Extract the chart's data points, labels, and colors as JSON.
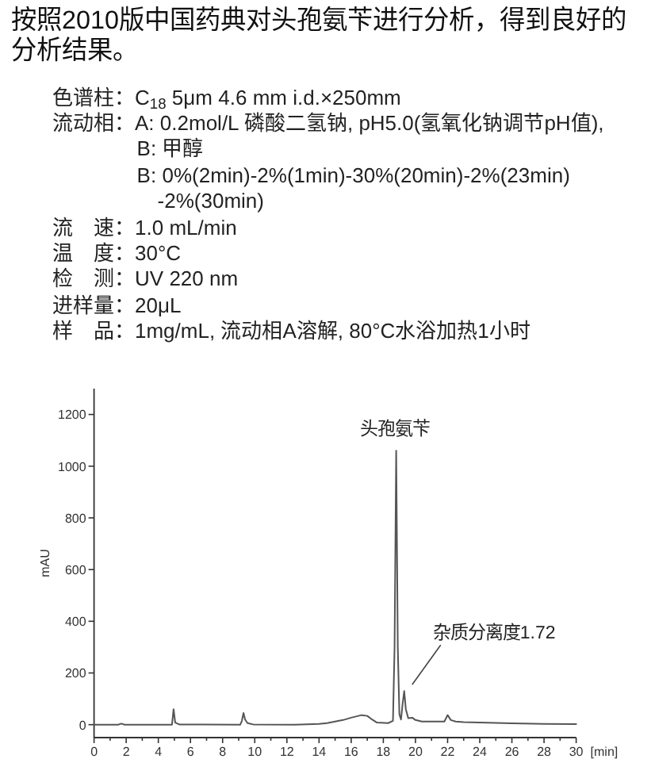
{
  "chart_data": {
    "type": "line",
    "title": "按照2010版中国药典对头孢氨苄进行分析，得到良好的分析结果。",
    "xlabel": "[min]",
    "ylabel": "mAU",
    "annotations": [
      "色谱柱：C$_{18}$ 5μm 4.6 mm i.d.×250mm",
      "流动相：A: 0.2mol/L 磷酸二氢钠, pH5.0(氢氧化钠调节pH值),\nB: 甲醇\nB: 0%(2min)-2%(1min)-30%(20min)-2%(23min) -2%(30min)",
      "流　速：1.0 mL/min",
      "温　度：30°C",
      "检　测：UV 220 nm",
      "进样量：20μL",
      "样　品：1mg/mL, 流动相A溶解, 80°C水浴加热1小时",
      {
        "text": "头孢氨苄",
        "x": 18.8,
        "y": 1060
      },
      {
        "text": "杂质分离度1.72",
        "x": 19.3,
        "y": 130
      }
    ],
    "x": [
      0,
      1.5,
      1.7,
      1.9,
      4.85,
      4.95,
      5.05,
      5.3,
      9.1,
      9.2,
      9.3,
      9.4,
      9.55,
      9.9,
      12.5,
      14,
      14.5,
      15,
      15.5,
      16,
      16.65,
      17,
      17.3,
      17.6,
      18.3,
      18.6,
      18.7,
      18.8,
      18.9,
      19.0,
      19.1,
      19.2,
      19.3,
      19.4,
      19.55,
      19.8,
      20,
      20.4,
      21.8,
      22.0,
      22.2,
      22.5,
      23,
      24,
      26,
      28,
      30
    ],
    "series": [
      {
        "color": "#555555",
        "values": [
          0,
          0,
          4,
          0,
          0,
          60,
          8,
          1,
          0,
          15,
          45,
          20,
          6,
          1,
          0,
          3,
          6,
          12,
          18,
          27,
          37,
          34,
          20,
          8,
          6,
          15,
          300,
          1060,
          300,
          40,
          20,
          80,
          130,
          60,
          25,
          27,
          18,
          12,
          12,
          37,
          18,
          12,
          10,
          8,
          5,
          3,
          2
        ]
      }
    ],
    "xlim": [
      0,
      30
    ],
    "ylim": [
      -50,
      1300
    ],
    "xticks": [
      0,
      {
        "value": 1,
        "label": null
      },
      2,
      {
        "value": 3,
        "label": null
      },
      4,
      {
        "value": 5,
        "label": null
      },
      6,
      {
        "value": 7,
        "label": null
      },
      8,
      {
        "value": 9,
        "label": null
      },
      10,
      {
        "value": 11,
        "label": null
      },
      12,
      {
        "value": 13,
        "label": null
      },
      14,
      {
        "value": 15,
        "label": null
      },
      16,
      {
        "value": 17,
        "label": null
      },
      18,
      {
        "value": 19,
        "label": null
      },
      20,
      {
        "value": 21,
        "label": null
      },
      22,
      {
        "value": 23,
        "label": null
      },
      24,
      {
        "value": 25,
        "label": null
      },
      26,
      {
        "value": 27,
        "label": null
      },
      28,
      {
        "value": 29,
        "label": null
      },
      30
    ],
    "yticks": [
      0,
      200,
      400,
      600,
      800,
      1000,
      1200
    ]
  }
}
